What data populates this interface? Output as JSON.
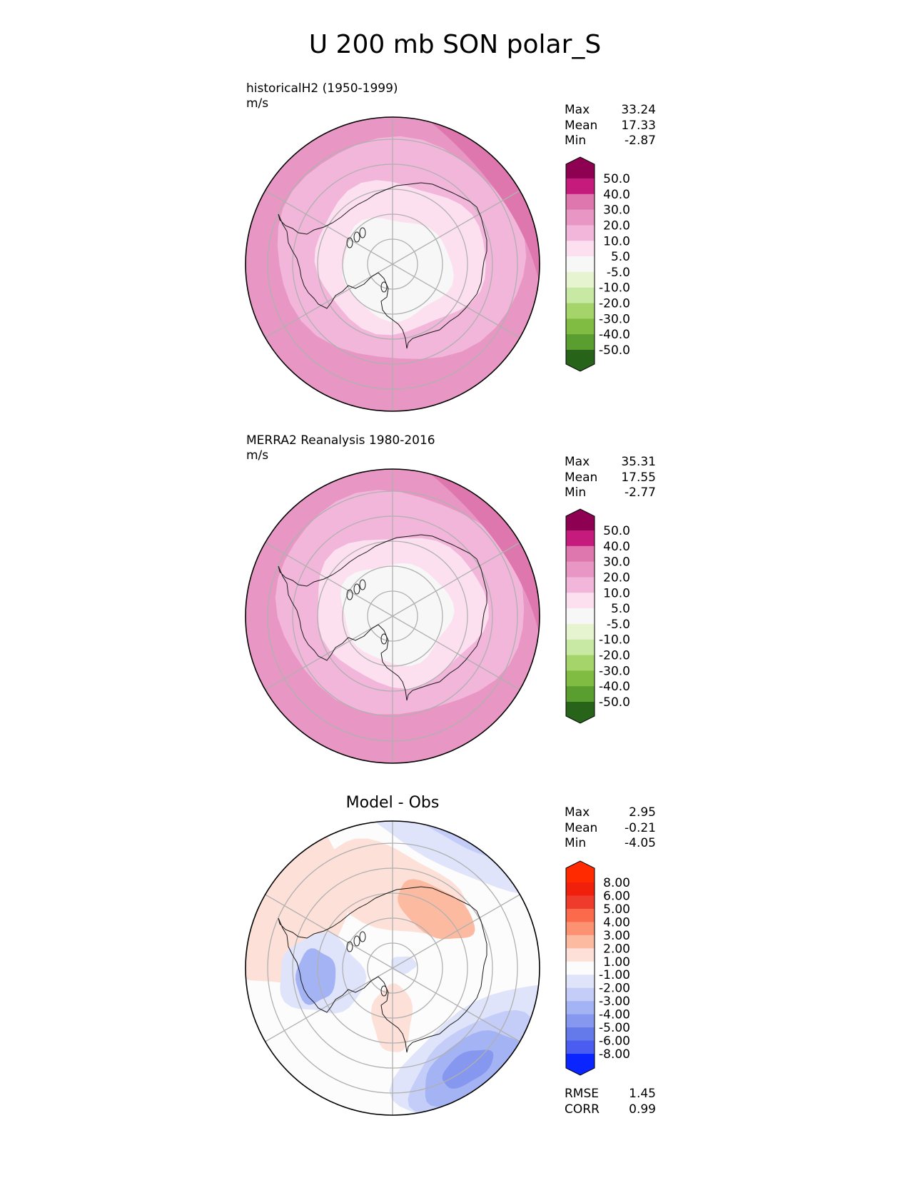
{
  "title": "U 200 mb SON polar_S",
  "colors": {
    "pink": [
      "#f7f7f7",
      "#fde0ef",
      "#f1b6da",
      "#e897c4",
      "#de77ae",
      "#c51b7d",
      "#8e0152"
    ],
    "green": [
      "#e6f5d0",
      "#c8e9a4",
      "#a5d46a",
      "#7fbc41",
      "#5a9e2f",
      "#3f8520",
      "#276419"
    ],
    "diff_red": [
      "#fde0d8",
      "#fcbba1",
      "#fc9272",
      "#fb6a4a",
      "#ef3b2c",
      "#f0200d",
      "#ff2a00"
    ],
    "diff_blue": [
      "#dfe4fb",
      "#c3cdf8",
      "#a4b3f3",
      "#8597ee",
      "#6479ea",
      "#4a5df0",
      "#2a3cf5",
      "#0a25ff"
    ],
    "land_outline": "#1a1a1a",
    "grid": "#b0b0b0"
  },
  "panels": [
    {
      "title_line1": "historicalH2 (1950-1999)",
      "title_line2": "m/s",
      "stats": {
        "max_label": "Max",
        "max": "33.24",
        "mean_label": "Mean",
        "mean": "17.33",
        "min_label": "Min",
        "min": "-2.87"
      },
      "colorbar_labels": [
        "50.0",
        "40.0",
        "30.0",
        "20.0",
        "10.0",
        "5.0",
        "-5.0",
        "-10.0",
        "-20.0",
        "-30.0",
        "-40.0",
        "-50.0"
      ]
    },
    {
      "title_line1": "MERRA2 Reanalysis 1980-2016",
      "title_line2": "m/s",
      "stats": {
        "max_label": "Max",
        "max": "35.31",
        "mean_label": "Mean",
        "mean": "17.55",
        "min_label": "Min",
        "min": "-2.77"
      },
      "colorbar_labels": [
        "50.0",
        "40.0",
        "30.0",
        "20.0",
        "10.0",
        "5.0",
        "-5.0",
        "-10.0",
        "-20.0",
        "-30.0",
        "-40.0",
        "-50.0"
      ]
    },
    {
      "center_title": "Model - Obs",
      "stats": {
        "max_label": "Max",
        "max": "2.95",
        "mean_label": "Mean",
        "mean": "-0.21",
        "min_label": "Min",
        "min": "-4.05"
      },
      "colorbar_labels": [
        "8.00",
        "6.00",
        "5.00",
        "4.00",
        "3.00",
        "2.00",
        "1.00",
        "-1.00",
        "-2.00",
        "-3.00",
        "-4.00",
        "-5.00",
        "-6.00",
        "-8.00"
      ],
      "rmse_label": "RMSE",
      "rmse": "1.45",
      "corr_label": "CORR",
      "corr": "0.99"
    }
  ],
  "chart_data": [
    {
      "type": "polar_contour",
      "title": "historicalH2 (1950-1999)",
      "units": "m/s",
      "levels": [
        -50,
        -40,
        -30,
        -20,
        -10,
        -5,
        5,
        10,
        20,
        30,
        40,
        50
      ],
      "max": 33.24,
      "mean": 17.33,
      "min": -2.87
    },
    {
      "type": "polar_contour",
      "title": "MERRA2 Reanalysis 1980-2016",
      "units": "m/s",
      "levels": [
        -50,
        -40,
        -30,
        -20,
        -10,
        -5,
        5,
        10,
        20,
        30,
        40,
        50
      ],
      "max": 35.31,
      "mean": 17.55,
      "min": -2.77
    },
    {
      "type": "polar_contour",
      "title": "Model - Obs",
      "levels": [
        -8,
        -6,
        -5,
        -4,
        -3,
        -2,
        -1,
        1,
        2,
        3,
        4,
        5,
        6,
        8
      ],
      "max": 2.95,
      "mean": -0.21,
      "min": -4.05,
      "rmse": 1.45,
      "corr": 0.99
    }
  ]
}
